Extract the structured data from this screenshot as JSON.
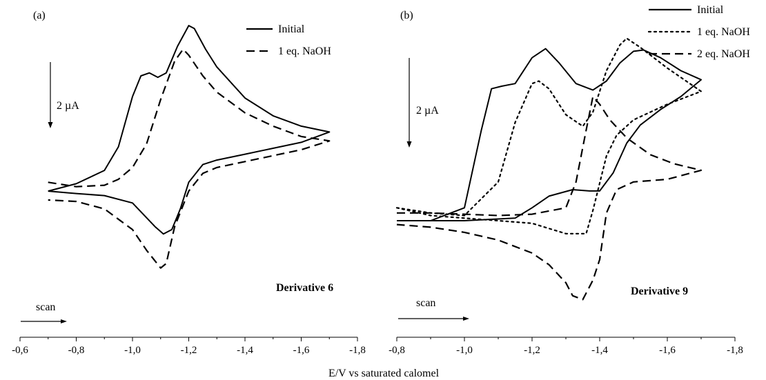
{
  "xlabel": "E/V vs saturated calomel",
  "chart_data": [
    {
      "type": "line",
      "panel_label": "(a)",
      "annotation": "Derivative 6",
      "scale_bar_label": "2 µA",
      "scan_label": "scan",
      "xlim": [
        -0.6,
        -1.8
      ],
      "x_ticks": [
        -0.6,
        -0.8,
        -1.0,
        -1.2,
        -1.4,
        -1.6,
        -1.8
      ],
      "x_tick_labels": [
        "-0,6",
        "-0,8",
        "-1,0",
        "-1,2",
        "-1,4",
        "-1,6",
        "-1,8"
      ],
      "ylim": [
        -3.8,
        6.0
      ],
      "xlabel": "E/V vs saturated calomel",
      "legend_position": "top-right",
      "series": [
        {
          "name": "Initial",
          "style": "solid",
          "x": [
            -0.7,
            -0.8,
            -0.9,
            -0.95,
            -1.0,
            -1.03,
            -1.06,
            -1.09,
            -1.12,
            -1.16,
            -1.2,
            -1.22,
            -1.26,
            -1.3,
            -1.4,
            -1.5,
            -1.6,
            -1.7,
            -1.6,
            -1.5,
            -1.4,
            -1.3,
            -1.25,
            -1.2,
            -1.17,
            -1.14,
            -1.11,
            -1.08,
            -1.0,
            -0.9,
            -0.8,
            -0.7
          ],
          "y": [
            0.0,
            0.25,
            0.7,
            1.5,
            3.2,
            3.9,
            4.0,
            3.85,
            4.0,
            4.9,
            5.6,
            5.5,
            4.8,
            4.2,
            3.15,
            2.55,
            2.2,
            2.0,
            1.65,
            1.45,
            1.25,
            1.05,
            0.9,
            0.3,
            -0.6,
            -1.3,
            -1.45,
            -1.2,
            -0.4,
            -0.15,
            -0.08,
            0.0
          ]
        },
        {
          "name": "1 eq. NaOH",
          "style": "dashed",
          "x": [
            -0.7,
            -0.8,
            -0.9,
            -0.95,
            -1.0,
            -1.05,
            -1.1,
            -1.15,
            -1.18,
            -1.2,
            -1.25,
            -1.3,
            -1.4,
            -1.5,
            -1.6,
            -1.7,
            -1.6,
            -1.5,
            -1.4,
            -1.3,
            -1.25,
            -1.2,
            -1.15,
            -1.12,
            -1.1,
            -1.05,
            -1.0,
            -0.9,
            -0.8,
            -0.7
          ],
          "y": [
            0.3,
            0.15,
            0.2,
            0.4,
            0.8,
            1.6,
            3.1,
            4.4,
            4.8,
            4.6,
            3.9,
            3.35,
            2.65,
            2.2,
            1.85,
            1.7,
            1.4,
            1.2,
            1.0,
            0.8,
            0.6,
            0.0,
            -1.2,
            -2.45,
            -2.6,
            -2.0,
            -1.3,
            -0.6,
            -0.35,
            -0.3
          ]
        }
      ]
    },
    {
      "type": "line",
      "panel_label": "(b)",
      "annotation": "Derivative 9",
      "scale_bar_label": "2 µA",
      "scan_label": "scan",
      "xlim": [
        -0.8,
        -1.8
      ],
      "x_ticks": [
        -0.8,
        -1.0,
        -1.2,
        -1.4,
        -1.6,
        -1.8
      ],
      "x_tick_labels": [
        "-0,8",
        "-1,0",
        "-1,2",
        "-1,4",
        "-1,6",
        "-1,8"
      ],
      "ylim": [
        -3.2,
        8.0
      ],
      "xlabel": "E/V vs saturated calomel",
      "legend_position": "top-right",
      "series": [
        {
          "name": "Initial",
          "style": "solid",
          "x": [
            -0.8,
            -0.9,
            -1.0,
            -1.05,
            -1.08,
            -1.11,
            -1.15,
            -1.2,
            -1.24,
            -1.28,
            -1.33,
            -1.38,
            -1.42,
            -1.46,
            -1.5,
            -1.53,
            -1.58,
            -1.64,
            -1.7,
            -1.64,
            -1.58,
            -1.52,
            -1.48,
            -1.44,
            -1.4,
            -1.37,
            -1.32,
            -1.25,
            -1.2,
            -1.15,
            -1.0,
            -0.9,
            -0.8
          ],
          "y": [
            0.0,
            0.0,
            0.5,
            3.5,
            5.1,
            5.2,
            5.3,
            6.3,
            6.65,
            6.1,
            5.3,
            5.05,
            5.4,
            6.1,
            6.55,
            6.6,
            6.3,
            5.8,
            5.45,
            4.8,
            4.3,
            3.7,
            3.0,
            1.85,
            1.15,
            1.15,
            1.2,
            0.95,
            0.5,
            0.1,
            0.0,
            0.0,
            0.0
          ]
        },
        {
          "name": "1 eq. NaOH",
          "style": "dotted",
          "x": [
            -0.8,
            -0.9,
            -1.0,
            -1.1,
            -1.15,
            -1.2,
            -1.22,
            -1.25,
            -1.3,
            -1.35,
            -1.38,
            -1.42,
            -1.46,
            -1.48,
            -1.52,
            -1.6,
            -1.7,
            -1.6,
            -1.5,
            -1.45,
            -1.42,
            -1.38,
            -1.36,
            -1.3,
            -1.2,
            -1.1,
            -1.0,
            -0.9,
            -0.8
          ],
          "y": [
            0.5,
            0.3,
            0.2,
            1.5,
            3.8,
            5.3,
            5.4,
            5.1,
            4.1,
            3.65,
            4.2,
            5.8,
            6.8,
            7.05,
            6.7,
            5.9,
            5.0,
            4.5,
            3.9,
            3.3,
            2.5,
            0.4,
            -0.5,
            -0.5,
            -0.1,
            0.0,
            0.1,
            0.2,
            0.5
          ]
        },
        {
          "name": "2 eq. NaOH",
          "style": "dashed",
          "x": [
            -0.8,
            -0.9,
            -1.0,
            -1.1,
            -1.2,
            -1.3,
            -1.33,
            -1.36,
            -1.38,
            -1.4,
            -1.43,
            -1.48,
            -1.55,
            -1.62,
            -1.7,
            -1.6,
            -1.5,
            -1.45,
            -1.42,
            -1.4,
            -1.38,
            -1.35,
            -1.32,
            -1.3,
            -1.25,
            -1.2,
            -1.1,
            -1.0,
            -0.9,
            -0.8
          ],
          "y": [
            0.3,
            0.3,
            0.25,
            0.2,
            0.25,
            0.5,
            1.5,
            3.5,
            4.8,
            4.5,
            3.9,
            3.2,
            2.55,
            2.2,
            1.95,
            1.6,
            1.5,
            1.2,
            0.3,
            -1.5,
            -2.3,
            -3.05,
            -2.9,
            -2.4,
            -1.7,
            -1.25,
            -0.75,
            -0.45,
            -0.25,
            -0.15
          ]
        }
      ]
    }
  ]
}
